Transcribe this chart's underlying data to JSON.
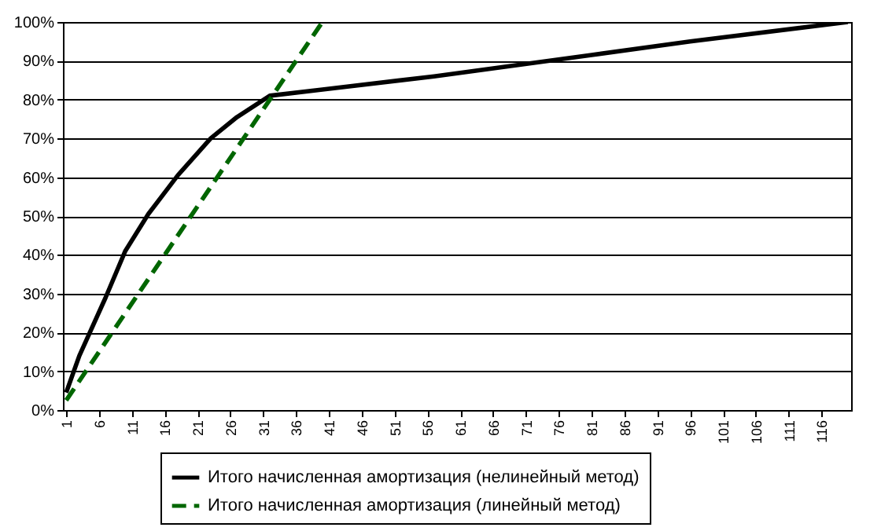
{
  "chart_data": {
    "type": "line",
    "xlim": [
      0.5,
      120.5
    ],
    "xticks": [
      1,
      6,
      11,
      16,
      21,
      26,
      31,
      36,
      41,
      46,
      51,
      56,
      61,
      66,
      71,
      76,
      81,
      86,
      91,
      96,
      101,
      106,
      111,
      116
    ],
    "ylim": [
      0,
      100
    ],
    "yticks": [
      {
        "value": 0,
        "label": "0%"
      },
      {
        "value": 10,
        "label": "10%"
      },
      {
        "value": 20,
        "label": "20%"
      },
      {
        "value": 30,
        "label": "30%"
      },
      {
        "value": 40,
        "label": "40%"
      },
      {
        "value": 50,
        "label": "50%"
      },
      {
        "value": 60,
        "label": "60%"
      },
      {
        "value": 70,
        "label": "70%"
      },
      {
        "value": 80,
        "label": "80%"
      },
      {
        "value": 90,
        "label": "90%"
      },
      {
        "value": 100,
        "label": "100%"
      }
    ],
    "grid": "y",
    "legend": "bottom",
    "series": [
      {
        "name": "Итого начисленная амортизация (нелинейный метод)",
        "color": "#000000",
        "line_style": "solid",
        "x": [
          1,
          3,
          7,
          10,
          13.5,
          18,
          23,
          27,
          32,
          40,
          57,
          81,
          96,
          120
        ],
        "values": [
          4.5,
          14,
          29,
          41,
          50.5,
          60.5,
          70,
          75.5,
          81,
          82.6,
          86,
          91.5,
          95,
          100
        ]
      },
      {
        "name": "Итого начисленная амортизация (линейный метод)",
        "color": "#006600",
        "line_style": "dashed",
        "x": [
          1,
          40
        ],
        "values": [
          2.5,
          100
        ]
      }
    ]
  }
}
